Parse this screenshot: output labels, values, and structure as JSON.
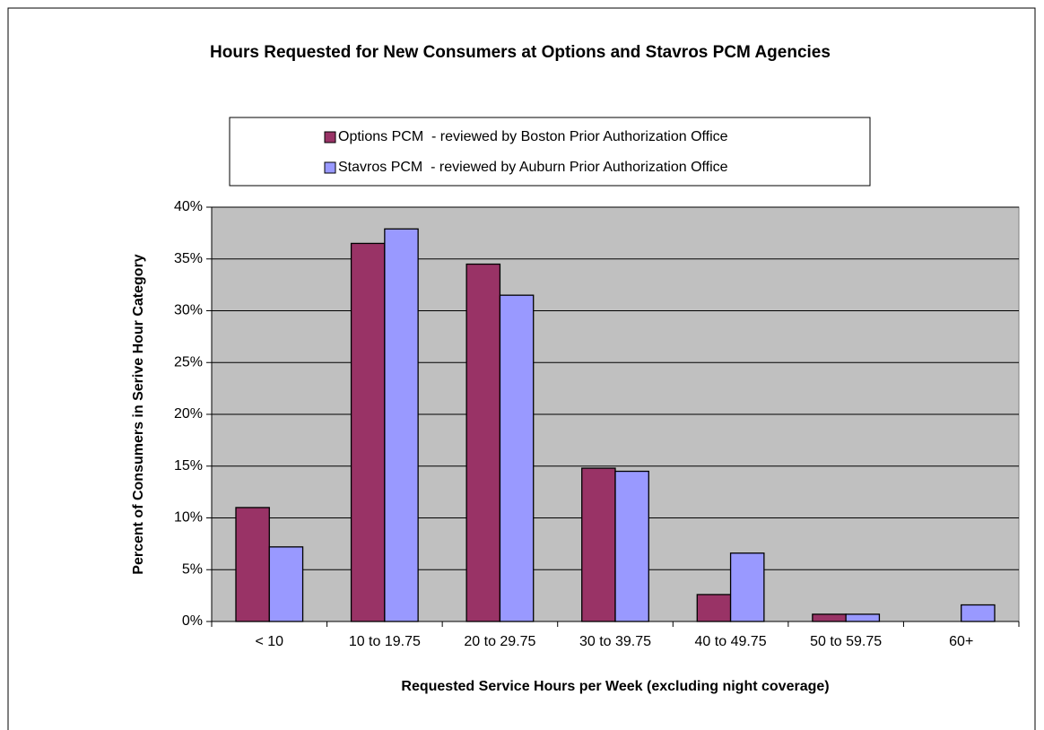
{
  "chart_data": {
    "type": "bar",
    "title": "Hours Requested for New Consumers at Options and Stavros PCM Agencies",
    "x_label": "Requested Service Hours per Week (excluding night coverage)",
    "y_label": "Percent of Consumers in Serive Hour Category",
    "categories": [
      "< 10",
      "10 to 19.75",
      "20 to 29.75",
      "30 to 39.75",
      "40 to 49.75",
      "50 to 59.75",
      "60+"
    ],
    "series": [
      {
        "name": "Options PCM  - reviewed by Boston Prior Authorization Office",
        "color": "#993366",
        "values": [
          11.0,
          36.5,
          34.5,
          14.8,
          2.6,
          0.7,
          0
        ]
      },
      {
        "name": "Stavros PCM  - reviewed by Auburn Prior Authorization Office",
        "color": "#9999FF",
        "values": [
          7.2,
          37.9,
          31.5,
          14.5,
          6.6,
          0.7,
          1.6
        ]
      }
    ],
    "ylim": [
      0,
      40
    ],
    "yticks": [
      {
        "value": 0,
        "label": "0%"
      },
      {
        "value": 5,
        "label": "5%"
      },
      {
        "value": 10,
        "label": "10%"
      },
      {
        "value": 15,
        "label": "15%"
      },
      {
        "value": 20,
        "label": "20%"
      },
      {
        "value": 25,
        "label": "25%"
      },
      {
        "value": 30,
        "label": "30%"
      },
      {
        "value": 35,
        "label": "35%"
      },
      {
        "value": 40,
        "label": "40%"
      }
    ],
    "grid": true
  }
}
